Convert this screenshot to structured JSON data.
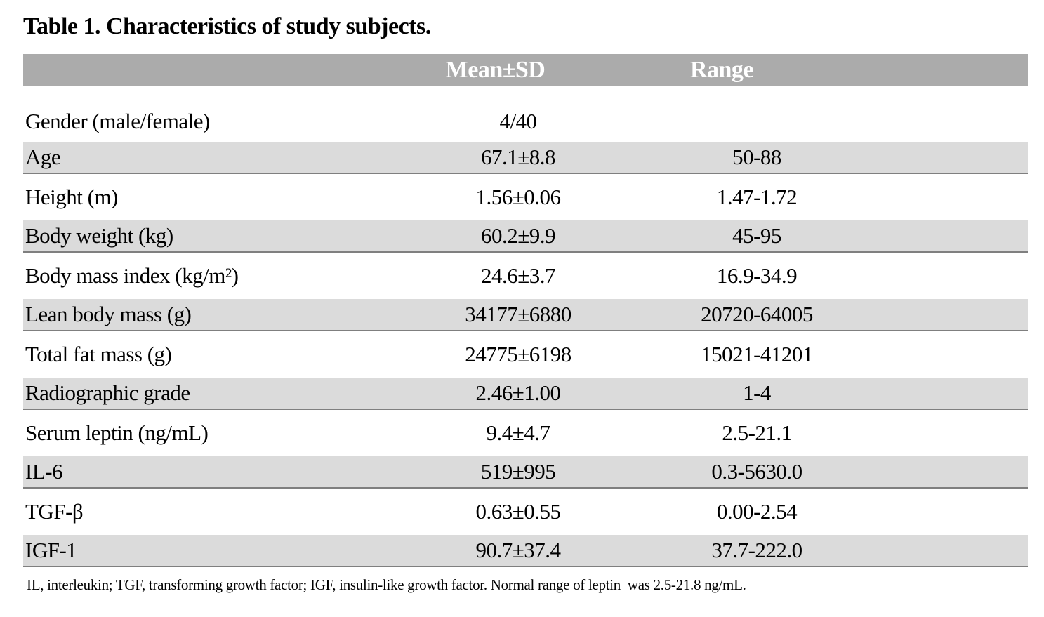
{
  "page": {
    "title": "Table 1. Characteristics of study subjects."
  },
  "table": {
    "headers": {
      "mean_sd": "Mean±SD",
      "range": "Range"
    },
    "rows": [
      {
        "label": "Gender (male/female)",
        "mean_sd": "4/40",
        "range": ""
      },
      {
        "label": "Age",
        "mean_sd": "67.1±8.8",
        "range": "50-88"
      },
      {
        "label": "Height (m)",
        "mean_sd": "1.56±0.06",
        "range": "1.47-1.72"
      },
      {
        "label": "Body weight (kg)",
        "mean_sd": "60.2±9.9",
        "range": "45-95"
      },
      {
        "label": "Body mass index (kg/m²)",
        "mean_sd": "24.6±3.7",
        "range": "16.9-34.9"
      },
      {
        "label": "Lean body mass (g)",
        "mean_sd": "34177±6880",
        "range": "20720-64005"
      },
      {
        "label": "Total fat mass (g)",
        "mean_sd": "24775±6198",
        "range": "15021-41201"
      },
      {
        "label": "Radiographic grade",
        "mean_sd": "2.46±1.00",
        "range": "1-4"
      },
      {
        "label": "Serum leptin (ng/mL)",
        "mean_sd": "9.4±4.7",
        "range": "2.5-21.1"
      },
      {
        "label": "IL-6",
        "mean_sd": "519±995",
        "range": "0.3-5630.0"
      },
      {
        "label": "TGF-β",
        "mean_sd": "0.63±0.55",
        "range": "0.00-2.54"
      },
      {
        "label": "IGF-1",
        "mean_sd": "90.7±37.4",
        "range": "37.7-222.0"
      }
    ],
    "footnote": "IL, interleukin; TGF, transforming growth factor; IGF, insulin-like growth factor. Normal range of leptin  was 2.5-21.8 ng/mL."
  },
  "colors": {
    "header_bg": "#ABABAB",
    "header_text": "#FFFFFF",
    "shaded_row_bg": "#DBDBDB",
    "row_divider": "#7F7F7F",
    "text": "#000000"
  }
}
